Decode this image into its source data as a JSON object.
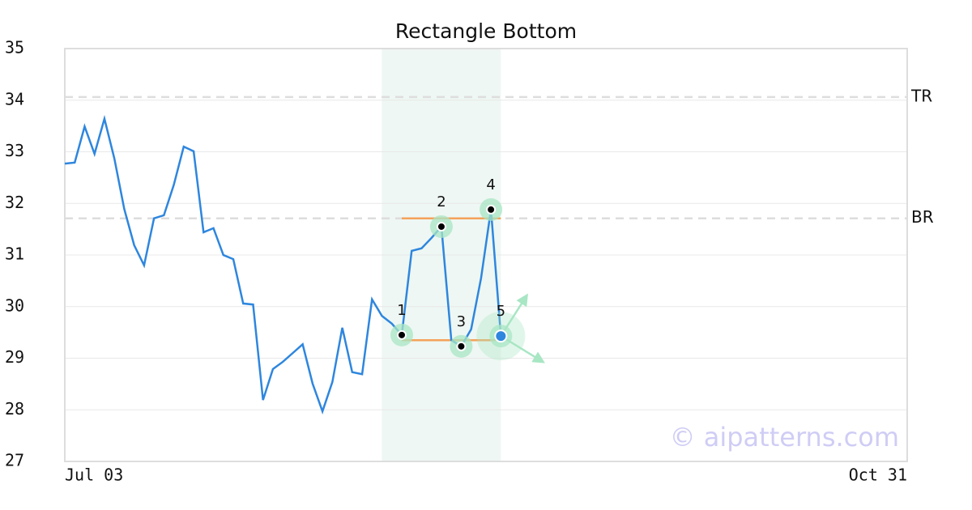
{
  "chart_data": {
    "type": "line",
    "title": "Rectangle Bottom",
    "x": [
      0,
      1,
      2,
      3,
      4,
      5,
      6,
      7,
      8,
      9,
      10,
      11,
      12,
      13,
      14,
      15,
      16,
      17,
      18,
      19,
      20,
      21,
      22,
      23,
      24,
      25,
      26,
      27,
      28,
      29,
      30,
      31,
      32,
      33,
      34,
      35,
      36,
      37,
      38,
      39,
      40,
      41,
      42,
      43,
      44
    ],
    "values": [
      32.77,
      32.79,
      33.49,
      32.96,
      33.64,
      32.87,
      31.89,
      31.19,
      30.8,
      31.71,
      31.77,
      32.36,
      33.1,
      33.01,
      31.44,
      31.52,
      31.0,
      30.92,
      30.06,
      30.04,
      28.19,
      28.79,
      28.93,
      29.1,
      29.27,
      28.51,
      27.97,
      28.54,
      29.59,
      28.73,
      28.69,
      30.14,
      29.82,
      29.67,
      29.45,
      31.08,
      31.13,
      31.33,
      31.55,
      29.35,
      29.23,
      29.56,
      30.55,
      31.88,
      29.43
    ],
    "color": "#2e86de",
    "xlim": [
      0,
      85
    ],
    "xticks": [
      {
        "value": 0,
        "label": "Jul 03"
      },
      {
        "value": 85,
        "label": "Oct 31"
      }
    ],
    "ylim": [
      27,
      35
    ],
    "yticks": [
      27,
      28,
      29,
      30,
      31,
      32,
      33,
      34,
      35
    ],
    "grid": true,
    "levels": [
      {
        "label": "TR",
        "value": 34.06
      },
      {
        "label": "BR",
        "value": 31.71
      }
    ],
    "pattern_lines": [
      {
        "value": 31.71,
        "x": [
          34,
          44
        ]
      },
      {
        "value": 29.35,
        "x": [
          34,
          44
        ]
      }
    ],
    "pattern_line_color": "#f4a259",
    "highlight_range": [
      32,
      44
    ],
    "highlight_color": "#eef7f3",
    "points": [
      {
        "label": "1",
        "x": 34,
        "y": 29.45
      },
      {
        "label": "2",
        "x": 38,
        "y": 31.55
      },
      {
        "label": "3",
        "x": 40,
        "y": 29.23
      },
      {
        "label": "4",
        "x": 43,
        "y": 31.88
      },
      {
        "label": "5",
        "x": 44,
        "y": 29.43
      }
    ],
    "watermark": "© aipatterns.com"
  }
}
